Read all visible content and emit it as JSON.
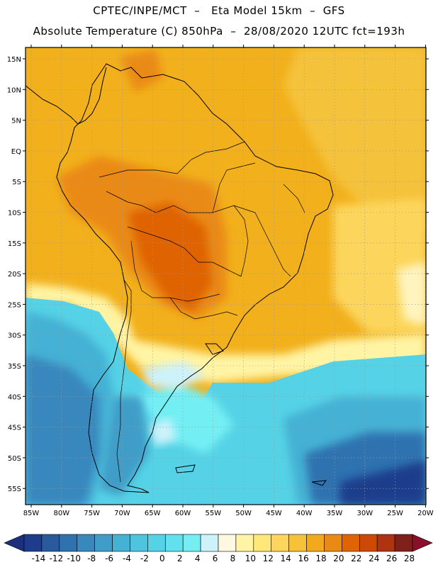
{
  "title_line1": "CPTEC/INPE/MCT  –   Eta Model 15km  –  GFS",
  "title_line2": "Absolute Temperature (C) 850hPa  –  28/08/2020 12UTC fct=193h",
  "lat_labels": [
    "15N",
    "10N",
    "5N",
    "EQ",
    "5S",
    "10S",
    "15S",
    "20S",
    "25S",
    "30S",
    "35S",
    "40S",
    "45S",
    "50S",
    "55S"
  ],
  "lon_labels": [
    "85W",
    "80W",
    "75W",
    "70W",
    "65W",
    "60W",
    "55W",
    "50W",
    "45W",
    "40W",
    "35W",
    "30W",
    "25W",
    "20W"
  ],
  "colorbar": {
    "labels": [
      "-14",
      "-12",
      "-10",
      "-8",
      "-6",
      "-4",
      "-2",
      "0",
      "2",
      "4",
      "6",
      "8",
      "10",
      "12",
      "14",
      "16",
      "18",
      "20",
      "22",
      "24",
      "26",
      "28"
    ],
    "colors": [
      "#1e3c8c",
      "#2a5a9e",
      "#2f72b0",
      "#3887bd",
      "#3f9dc8",
      "#45b1d4",
      "#4ec4de",
      "#55d2e6",
      "#62e0ee",
      "#73eff4",
      "#cdf2fa",
      "#fff8e0",
      "#fff4a4",
      "#ffe77a",
      "#fcd65c",
      "#f5c23a",
      "#f2a91c",
      "#ea8a16",
      "#df6406",
      "#cd4a06",
      "#ae3410",
      "#80201a"
    ],
    "under_color": "#1c2f7e",
    "over_color": "#8a0f2a"
  }
}
